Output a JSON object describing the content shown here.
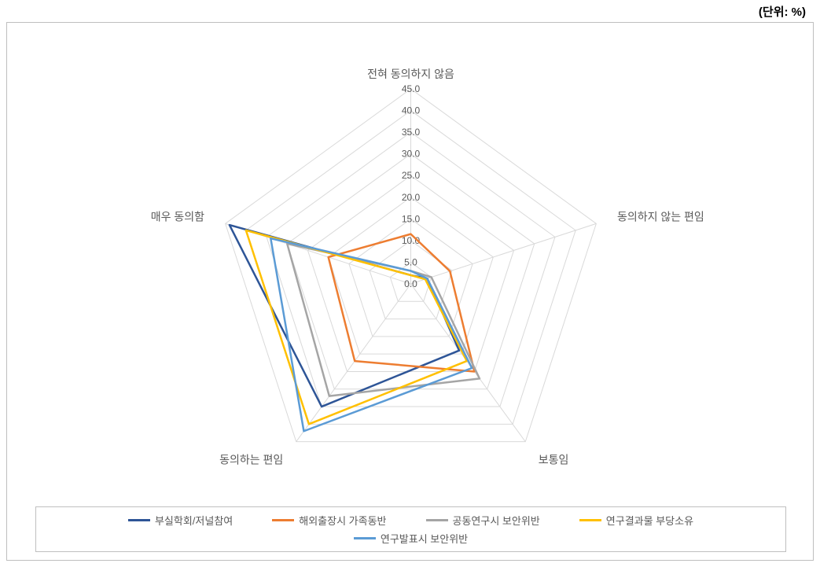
{
  "unit_label": "(단위: %)",
  "chart": {
    "type": "radar",
    "background_color": "#ffffff",
    "border_color": "#bfbfbf",
    "axes": [
      "전혀 동의하지 않음",
      "동의하지 않는 편임",
      "보통임",
      "동의하는 편임",
      "매우 동의함"
    ],
    "ticks": [
      0.0,
      5.0,
      10.0,
      15.0,
      20.0,
      25.0,
      30.0,
      35.0,
      40.0,
      45.0
    ],
    "tick_labels": [
      "0.0",
      "5.0",
      "10.0",
      "15.0",
      "20.0",
      "25.0",
      "30.0",
      "35.0",
      "40.0",
      "45.0"
    ],
    "max": 45.0,
    "tick_label_fontsize": 12,
    "axis_label_fontsize": 14,
    "axis_label_color": "#595959",
    "grid_line_color": "#d9d9d9",
    "grid_line_width": 1,
    "series_line_width": 2.5,
    "series": [
      {
        "name": "부실학회/저널참여",
        "color": "#2e5597",
        "values": [
          2.0,
          4.0,
          19.0,
          35.0,
          44.0
        ]
      },
      {
        "name": "해외출장시 가족동반",
        "color": "#ed7d31",
        "values": [
          11.5,
          9.5,
          25.0,
          22.0,
          20.0
        ]
      },
      {
        "name": "공동연구시 보안위반",
        "color": "#a5a5a5",
        "values": [
          3.0,
          5.0,
          27.0,
          32.0,
          30.0
        ]
      },
      {
        "name": "연구결과물 부당소유",
        "color": "#ffc000",
        "values": [
          2.0,
          3.5,
          22.0,
          40.0,
          40.0
        ]
      },
      {
        "name": "연구발표시 보안위반",
        "color": "#5b9bd5",
        "values": [
          3.0,
          4.0,
          24.0,
          42.0,
          34.0
        ]
      }
    ]
  }
}
